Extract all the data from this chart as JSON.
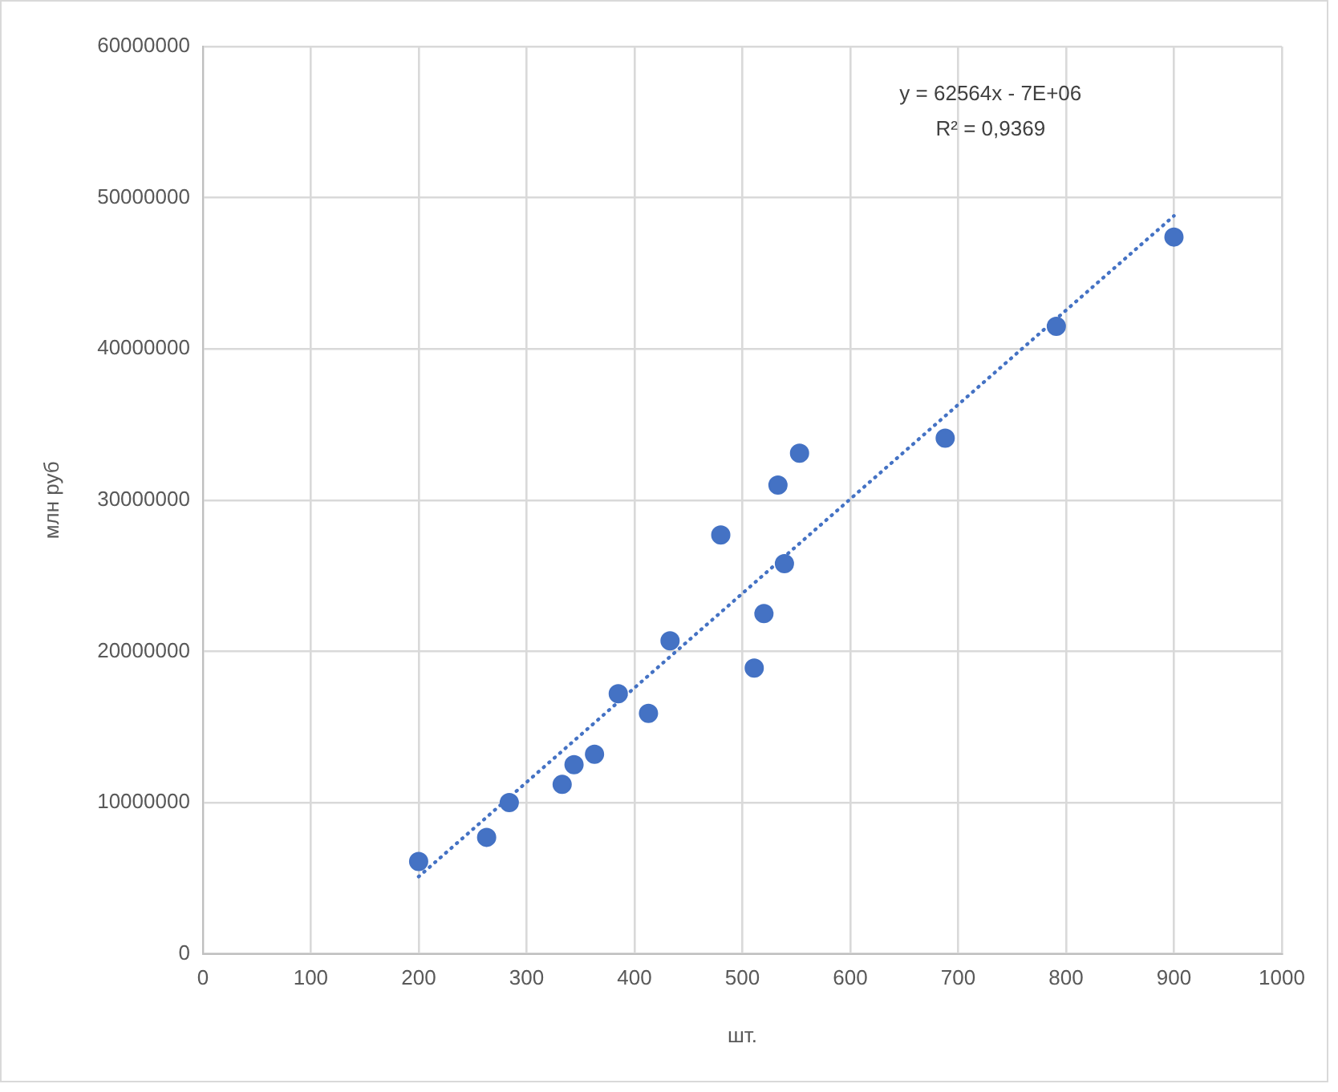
{
  "chart_data": {
    "type": "scatter",
    "xlabel": "шт.",
    "ylabel": "млн руб",
    "annotations": [
      "y = 62564x - 7E+06",
      "R² = 0,9369"
    ],
    "xlim": [
      0,
      1000
    ],
    "xticks": [
      0,
      100,
      200,
      300,
      400,
      500,
      600,
      700,
      800,
      900,
      1000
    ],
    "ylim": [
      0,
      60000000
    ],
    "yticks": [
      0,
      10000000,
      20000000,
      30000000,
      40000000,
      50000000,
      60000000
    ],
    "grid": true,
    "legend": false,
    "marker": "circle",
    "series": [
      {
        "color": "#4472c4",
        "x": [
          200,
          263,
          284,
          333,
          344,
          363,
          385,
          413,
          433,
          480,
          511,
          520,
          539,
          533,
          553,
          688,
          791,
          900
        ],
        "values": [
          6100000,
          7700000,
          10000000,
          11200000,
          12500000,
          13200000,
          17200000,
          15900000,
          20700000,
          27700000,
          18900000,
          22500000,
          25800000,
          31000000,
          33100000,
          34100000,
          41500000,
          47400000
        ]
      },
      {
        "type": "line",
        "color": "#4472c4",
        "line_style": "dotted",
        "marker": "none",
        "x": [
          200,
          900
        ],
        "values": [
          5100000,
          48800000
        ]
      }
    ]
  }
}
